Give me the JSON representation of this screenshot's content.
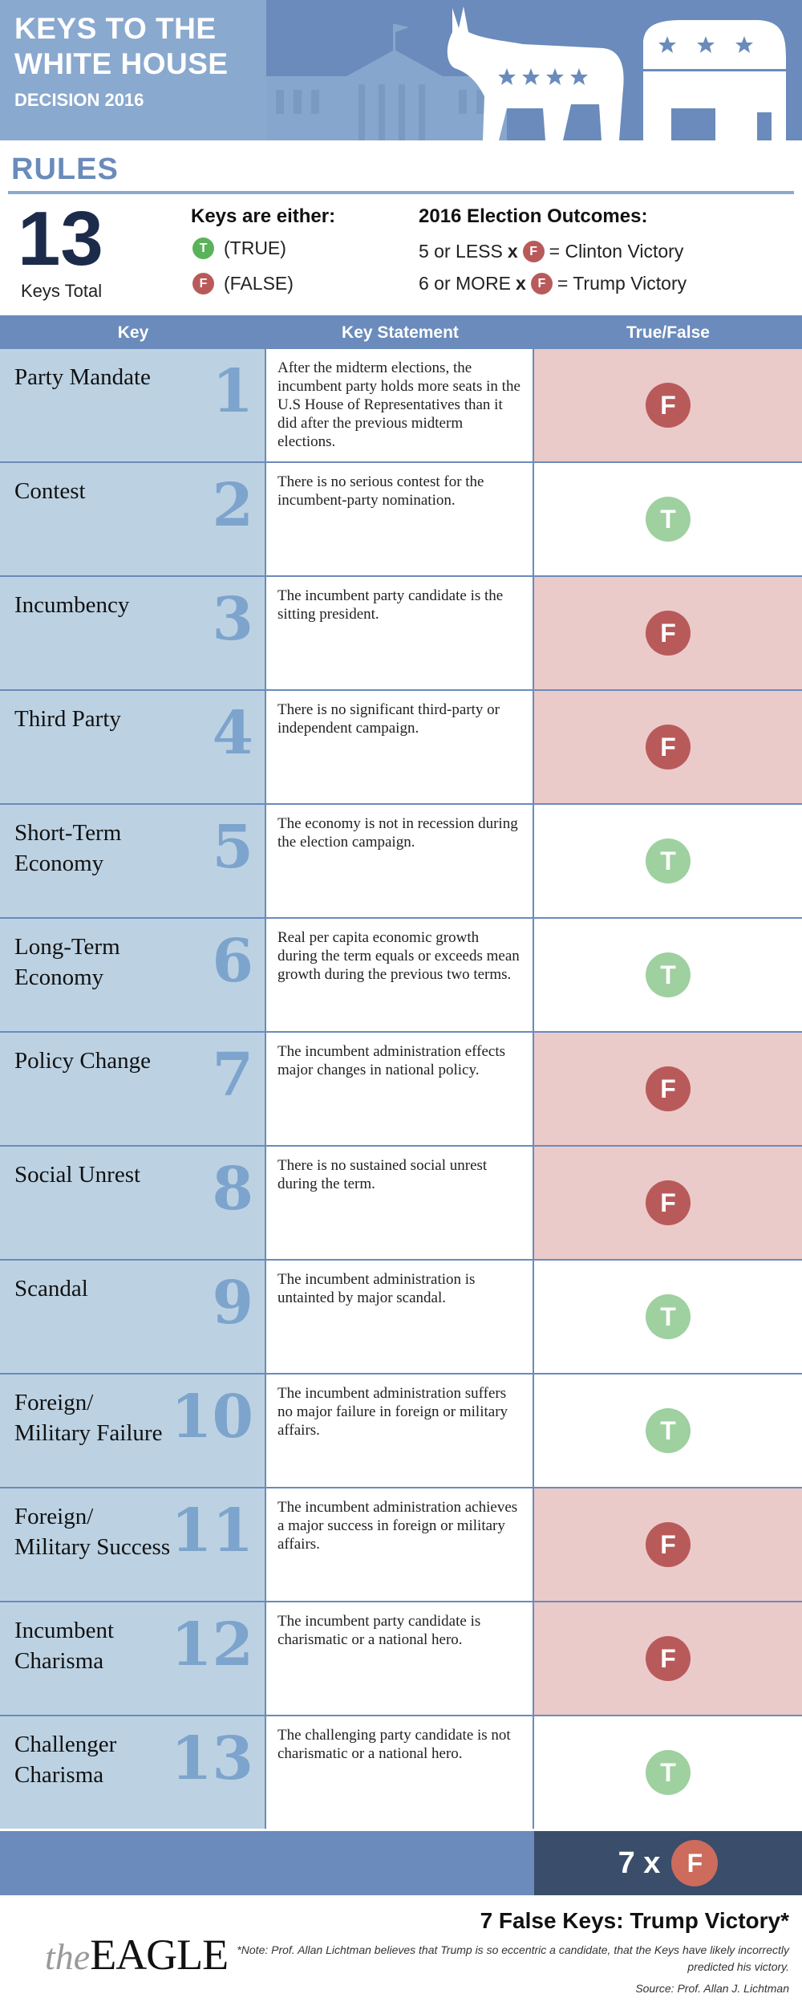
{
  "banner": {
    "title_line1": "KEYS TO THE",
    "title_line2": "WHITE HOUSE",
    "subtitle": "DECISION 2016",
    "art_icons": [
      "white-house-icon",
      "donkey-icon",
      "elephant-icon"
    ]
  },
  "rules": {
    "heading": "RULES",
    "total_number": "13",
    "total_label": "Keys Total",
    "either_title": "Keys are either:",
    "true_badge": "T",
    "true_label": "(TRUE)",
    "false_badge": "F",
    "false_label": "(FALSE)",
    "outcomes_title": "2016 Election Outcomes:",
    "outcome1_prefix": "5 or LESS",
    "outcome1_times": "x",
    "outcome1_badge": "F",
    "outcome1_result": "= Clinton Victory",
    "outcome2_prefix": "6 or MORE",
    "outcome2_times": "x",
    "outcome2_badge": "F",
    "outcome2_result": "= Trump Victory"
  },
  "table": {
    "headers": [
      "Key",
      "Key Statement",
      "True/False"
    ],
    "rows": [
      {
        "num": "1",
        "name": "Party Mandate",
        "statement": "After the midterm elections, the incumbent party holds more seats in the U.S House of Representatives than it did after the previous midterm elections.",
        "value": "F"
      },
      {
        "num": "2",
        "name": "Contest",
        "statement": "There is no serious contest for the incumbent-party nomination.",
        "value": "T"
      },
      {
        "num": "3",
        "name": "Incumbency",
        "statement": "The incumbent party candidate is the sitting president.",
        "value": "F"
      },
      {
        "num": "4",
        "name": "Third Party",
        "statement": "There is no significant third-party or independent campaign.",
        "value": "F"
      },
      {
        "num": "5",
        "name": "Short-Term Economy",
        "statement": "The economy is not in recession during the election campaign.",
        "value": "T"
      },
      {
        "num": "6",
        "name": "Long-Term Economy",
        "statement": "Real per capita economic growth during the term equals or exceeds mean growth during the previous two terms.",
        "value": "T"
      },
      {
        "num": "7",
        "name": "Policy Change",
        "statement": "The incumbent administration effects major changes in national policy.",
        "value": "F"
      },
      {
        "num": "8",
        "name": "Social Unrest",
        "statement": "There is no sustained social unrest during the term.",
        "value": "F"
      },
      {
        "num": "9",
        "name": "Scandal",
        "statement": "The incumbent administration is untainted by major scandal.",
        "value": "T"
      },
      {
        "num": "10",
        "name": "Foreign/ Military Failure",
        "statement": "The incumbent administration suffers no major failure in foreign or military affairs.",
        "value": "T"
      },
      {
        "num": "11",
        "name": "Foreign/ Military Success",
        "statement": "The incumbent administration achieves a major success in foreign or military affairs.",
        "value": "F"
      },
      {
        "num": "12",
        "name": "Incumbent Charisma",
        "statement": "The incumbent party candidate is charismatic or a national hero.",
        "value": "F"
      },
      {
        "num": "13",
        "name": "Challenger Charisma",
        "statement": "The challenging party candidate is not charismatic or a national hero.",
        "value": "T"
      }
    ]
  },
  "summary": {
    "count_text": "7 x",
    "badge": "F"
  },
  "footer": {
    "logo_the": "the",
    "logo_name": "EAGLE",
    "verdict": "7 False Keys: Trump Victory*",
    "note": "*Note: Prof. Allan Lichtman believes that Trump is so eccentric a candidate, that the Keys have likely incorrectly predicted his victory.",
    "source": "Source: Prof. Allan J. Lichtman"
  },
  "colors": {
    "brand_blue": "#6a8bbb",
    "light_blue": "#8aa9cf",
    "key_cell_bg": "#bcd2e3",
    "false_cell_bg": "#ebcaca",
    "false_badge": "#b95a5a",
    "true_badge": "#9fd09f",
    "navy": "#1c2b4a"
  }
}
